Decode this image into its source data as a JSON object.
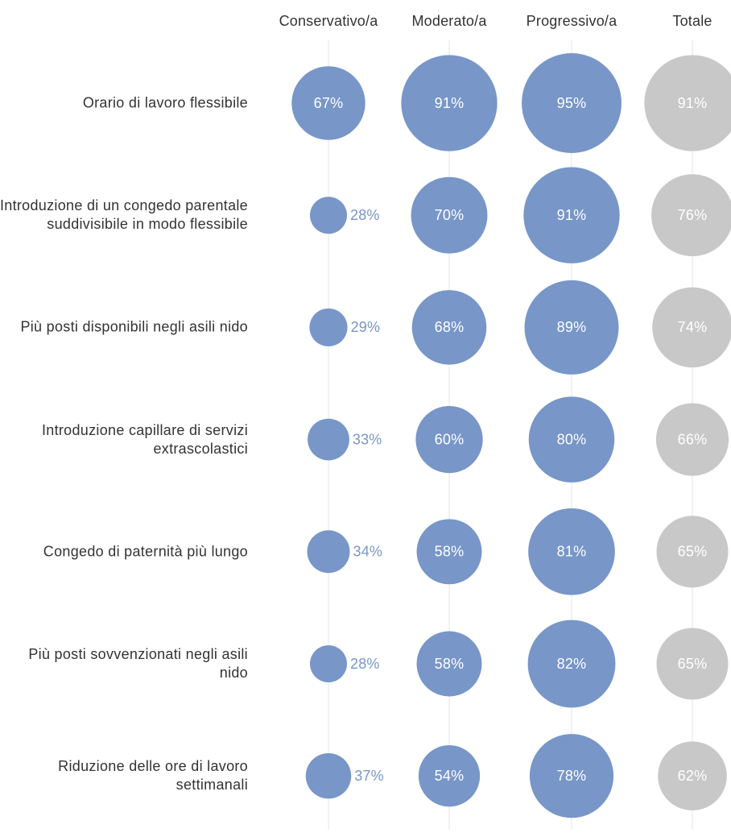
{
  "chart_data": {
    "type": "bubble",
    "categories": [
      "Orario di lavoro flessibile",
      "Introduzione di un congedo parentale suddivisibile in modo flessibile",
      "Più posti disponibili negli asili nido",
      "Introduzione capillare di servizi extrascolastici",
      "Congedo di paternità più lungo",
      "Più posti sovvenzionati negli asili nido",
      "Riduzione delle ore di lavoro settimanali"
    ],
    "series": [
      {
        "name": "Conservativo/a",
        "color": "#7896c8",
        "values": [
          67,
          28,
          29,
          33,
          34,
          28,
          37
        ],
        "value_labels": [
          "67%",
          "28%",
          "29%",
          "33%",
          "34%",
          "28%",
          "37%"
        ]
      },
      {
        "name": "Moderato/a",
        "color": "#7896c8",
        "values": [
          91,
          70,
          68,
          60,
          58,
          58,
          54
        ],
        "value_labels": [
          "91%",
          "70%",
          "68%",
          "60%",
          "58%",
          "58%",
          "54%"
        ]
      },
      {
        "name": "Progressivo/a",
        "color": "#7896c8",
        "values": [
          95,
          91,
          89,
          80,
          81,
          82,
          78
        ],
        "value_labels": [
          "95%",
          "91%",
          "89%",
          "80%",
          "81%",
          "82%",
          "78%"
        ]
      },
      {
        "name": "Totale",
        "color": "#c8c8c8",
        "values": [
          91,
          76,
          74,
          66,
          65,
          65,
          62
        ],
        "value_labels": [
          "91%",
          "76%",
          "74%",
          "66%",
          "65%",
          "65%",
          "62%"
        ]
      }
    ]
  }
}
